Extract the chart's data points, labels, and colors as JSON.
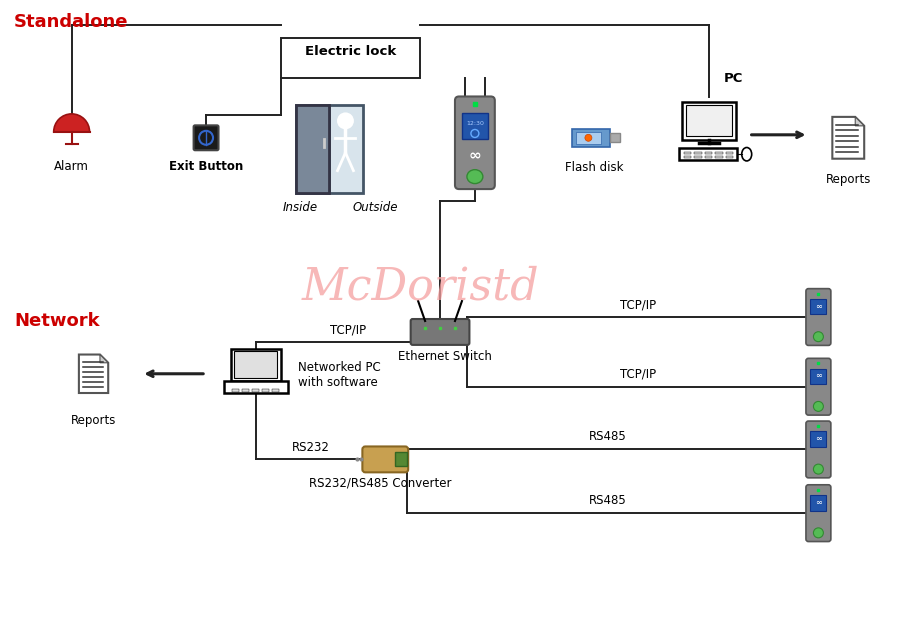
{
  "bg_color": "#ffffff",
  "standalone_label": "Standalone",
  "network_label": "Network",
  "label_color": "#cc0000",
  "line_color": "#222222",
  "watermark": "McDoristd",
  "watermark_color": "#f5a0a0",
  "labels": {
    "alarm": "Alarm",
    "exit_button": "Exit Button",
    "electric_lock": "Electric lock",
    "inside": "Inside",
    "outside": "Outside",
    "flash_disk": "Flash disk",
    "pc": "PC",
    "reports": "Reports",
    "tcp_ip": "TCP/IP",
    "ethernet_switch": "Ethernet Switch",
    "networked_pc": "Networked PC\nwith software",
    "reports2": "Reports",
    "rs232": "RS232",
    "rs485_1": "RS485",
    "rs485_2": "RS485",
    "converter": "RS232/RS485 Converter"
  },
  "figsize": [
    9.0,
    6.42
  ],
  "dpi": 100
}
